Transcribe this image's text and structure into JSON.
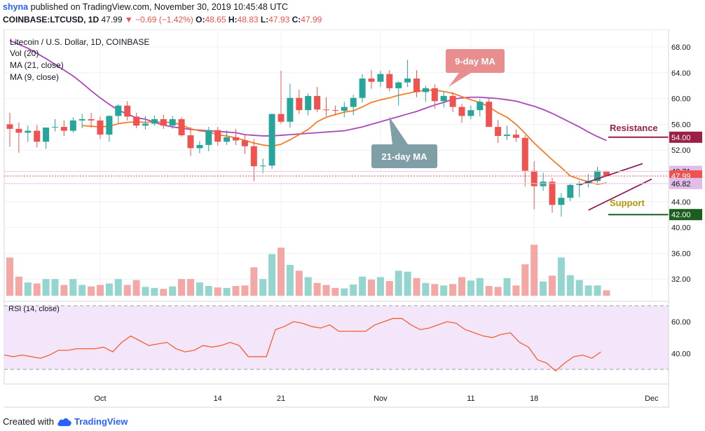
{
  "header": {
    "user": "shyna",
    "published": "published on TradingView.com, November 30, 2019 10:45:48 UTC",
    "symbol": "COINBASE:LTCUSD, 1D",
    "last": "47.99",
    "change": "−0.69 (−1.42%)",
    "o_label": "O:",
    "o": "48.65",
    "h_label": "H:",
    "h": "48.83",
    "l_label": "L:",
    "l": "47.93",
    "c_label": "C:",
    "c": "47.99"
  },
  "legend": {
    "title": "Litecoin / U.S. Dollar, 1D, COINBASE",
    "vol": "Vol (20)",
    "ma21": "MA (21, close)",
    "ma9": "MA (9, close)",
    "rsi": "RSI (14, close)"
  },
  "annotations": {
    "ma9": "9-day MA",
    "ma21": "21-day MA",
    "resistance": "Resistance",
    "support": "Support"
  },
  "footer": {
    "created_with": "Created with",
    "brand": "TradingView"
  },
  "colors": {
    "up": "#26a69a",
    "down": "#ef5350",
    "up_vol": "#94d5cf",
    "down_vol": "#f4a8a6",
    "ma9": "#f57c22",
    "ma21": "#ab47bc",
    "rsi": "#f4602d",
    "rsi_band": "#f3e5fa",
    "resistance": "#9c1f45",
    "support": "#1b5e20",
    "callout": "#7f9ea6",
    "callout_ma9": "#e88e8e"
  },
  "chart_data": {
    "type": "candlestick",
    "title": "Litecoin / U.S. Dollar, 1D, COINBASE",
    "price_ticks": [
      "68.00",
      "64.00",
      "60.00",
      "56.00",
      "52.00",
      "48.00",
      "44.00",
      "40.00",
      "36.00",
      "32.00"
    ],
    "price_labels": [
      {
        "text": "54.00",
        "value": 54.0,
        "color": "#9c1f45"
      },
      {
        "text": "48.71",
        "value": 48.71,
        "color": "#e1bee7"
      },
      {
        "text": "47.99",
        "value": 47.99,
        "color": "#ef5350"
      },
      {
        "text": "46.82",
        "value": 46.82,
        "color": "#e1bee7"
      },
      {
        "text": "42.00",
        "value": 42.0,
        "color": "#1b5e20"
      }
    ],
    "x_ticks": [
      {
        "label": "Oct",
        "day": 10
      },
      {
        "label": "14",
        "day": 23
      },
      {
        "label": "21",
        "day": 30
      },
      {
        "label": "Nov",
        "day": 41
      },
      {
        "label": "11",
        "day": 51
      },
      {
        "label": "18",
        "day": 58
      },
      {
        "label": "Dec",
        "day": 71
      }
    ],
    "rsi_ticks": [
      "60.00",
      "40.00"
    ],
    "rsi_band": [
      30,
      70
    ],
    "resistance": 54.0,
    "support": 42.0,
    "channel": {
      "upper": [
        [
          63,
          46.6
        ],
        [
          70,
          49.9
        ]
      ],
      "lower": [
        [
          64,
          42.7
        ],
        [
          71,
          47.5
        ]
      ]
    },
    "candles": [
      [
        56,
        57.8,
        52.5,
        55.3
      ],
      [
        55.3,
        56.3,
        51.6,
        54.7
      ],
      [
        54.7,
        55.8,
        53.3,
        55.0
      ],
      [
        55.0,
        55.9,
        52.4,
        53.3
      ],
      [
        53.3,
        55.5,
        52.2,
        55.5
      ],
      [
        55.5,
        56.8,
        54.9,
        55.6
      ],
      [
        55.6,
        56.6,
        54.2,
        55.0
      ],
      [
        55.0,
        57.1,
        54.7,
        56.6
      ],
      [
        56.6,
        57.6,
        55.4,
        56.8
      ],
      [
        56.8,
        57.8,
        55.5,
        56.6
      ],
      [
        56.6,
        57.2,
        53.7,
        54.4
      ],
      [
        54.4,
        57.4,
        53.3,
        57.3
      ],
      [
        57.3,
        59.1,
        56.2,
        58.9
      ],
      [
        58.9,
        59.6,
        56.6,
        57.2
      ],
      [
        57.2,
        57.8,
        55.4,
        55.8
      ],
      [
        55.8,
        57.3,
        55.2,
        56.1
      ],
      [
        56.1,
        57.4,
        55.8,
        56.8
      ],
      [
        56.8,
        57.5,
        55.3,
        55.8
      ],
      [
        55.8,
        57.3,
        55.3,
        56.8
      ],
      [
        56.8,
        57.1,
        54.1,
        54.3
      ],
      [
        54.3,
        55.6,
        51.1,
        52.3
      ],
      [
        52.3,
        53.4,
        51.5,
        52.8
      ],
      [
        52.8,
        55.6,
        51.8,
        55.1
      ],
      [
        55.1,
        55.6,
        52.7,
        53.3
      ],
      [
        53.3,
        55.1,
        52.8,
        54.0
      ],
      [
        54.0,
        55.3,
        52.8,
        53.5
      ],
      [
        53.5,
        54.5,
        51.4,
        52.6
      ],
      [
        52.6,
        53.7,
        47.2,
        49.5
      ],
      [
        49.5,
        50.7,
        48.4,
        49.6
      ],
      [
        49.6,
        57.7,
        49.1,
        57.6
      ],
      [
        57.6,
        64.3,
        56.1,
        56.4
      ],
      [
        56.4,
        62.3,
        55.5,
        60.1
      ],
      [
        60.1,
        61.4,
        57.6,
        58.2
      ],
      [
        58.2,
        60.8,
        57.4,
        60.4
      ],
      [
        60.4,
        61.8,
        57.9,
        58.3
      ],
      [
        58.3,
        60.2,
        57.3,
        58.2
      ],
      [
        58.2,
        58.9,
        57.4,
        58.1
      ],
      [
        58.1,
        59.5,
        57.1,
        58.7
      ],
      [
        58.7,
        60.6,
        57.4,
        60.1
      ],
      [
        60.1,
        63.8,
        59.4,
        63.1
      ],
      [
        63.1,
        64.4,
        61.5,
        62.6
      ],
      [
        62.6,
        64.3,
        61.8,
        63.8
      ],
      [
        63.8,
        64.4,
        61.1,
        61.6
      ],
      [
        61.6,
        62.7,
        58.9,
        62.5
      ],
      [
        62.5,
        66.0,
        61.8,
        63.1
      ],
      [
        63.1,
        64.4,
        60.2,
        61.0
      ],
      [
        61.0,
        62.0,
        59.5,
        61.6
      ],
      [
        61.6,
        62.2,
        58.4,
        59.6
      ],
      [
        59.6,
        61.1,
        58.6,
        60.4
      ],
      [
        60.4,
        61.0,
        57.9,
        58.7
      ],
      [
        58.7,
        59.2,
        56.2,
        57.3
      ],
      [
        57.3,
        58.9,
        56.8,
        58.2
      ],
      [
        58.2,
        59.9,
        57.2,
        59.5
      ],
      [
        59.5,
        60.1,
        55.7,
        55.6
      ],
      [
        55.6,
        56.7,
        53.1,
        54.2
      ],
      [
        54.2,
        55.8,
        53.6,
        54.4
      ],
      [
        54.4,
        55.2,
        53.3,
        53.9
      ],
      [
        53.9,
        54.3,
        46.4,
        48.8
      ],
      [
        48.8,
        50.3,
        42.8,
        46.4
      ],
      [
        46.4,
        48.5,
        45.7,
        47.1
      ],
      [
        47.1,
        47.7,
        42.3,
        43.5
      ],
      [
        43.5,
        45.3,
        41.7,
        44.6
      ],
      [
        44.6,
        46.8,
        44.1,
        46.6
      ],
      [
        46.6,
        47.2,
        44.7,
        46.8
      ],
      [
        46.8,
        48.3,
        46.2,
        47.2
      ],
      [
        47.2,
        49.4,
        46.9,
        48.8
      ],
      [
        48.65,
        48.83,
        47.93,
        47.99
      ]
    ],
    "candle_first_day": 0,
    "volume_max": 10,
    "volume": [
      7.8,
      3.9,
      2.7,
      2.5,
      3.4,
      3.4,
      2.2,
      3.4,
      2.2,
      1.9,
      2.2,
      2.5,
      3.4,
      2.2,
      3.2,
      1.8,
      1.6,
      1.4,
      1.9,
      3.4,
      3.4,
      2.7,
      2.0,
      1.7,
      1.6,
      2.0,
      2.1,
      5.8,
      3.4,
      8.5,
      9.8,
      6.3,
      5.1,
      3.8,
      2.6,
      2.2,
      1.6,
      1.5,
      2.3,
      3.9,
      3.3,
      3.8,
      3.0,
      5.1,
      4.9,
      3.6,
      2.6,
      2.4,
      2.1,
      2.4,
      3.8,
      3.1,
      3.6,
      2.0,
      1.8,
      3.6,
      2.1,
      6.4,
      10.4,
      2.9,
      4.1,
      7.8,
      4.2,
      3.2,
      2.1,
      2.1,
      1.1
    ],
    "volume_day_offset": 0,
    "ma9": [
      null,
      null,
      null,
      null,
      null,
      null,
      null,
      null,
      55.8,
      55.7,
      55.6,
      55.7,
      56.1,
      56.3,
      56.4,
      56.3,
      56.4,
      56.3,
      56.3,
      55.9,
      55.3,
      55.0,
      54.8,
      54.4,
      54.2,
      53.9,
      53.5,
      53.1,
      52.8,
      52.6,
      52.9,
      53.6,
      54.4,
      55.2,
      56.4,
      57.1,
      57.5,
      57.9,
      58.1,
      58.7,
      59.4,
      59.8,
      60.1,
      60.5,
      60.8,
      61.1,
      61.3,
      61.3,
      61.1,
      60.8,
      60.3,
      59.8,
      59.4,
      58.7,
      57.8,
      57.1,
      56.0,
      54.6,
      53.1,
      51.8,
      50.5,
      49.3,
      48.0,
      47.5,
      47.1,
      46.7,
      46.9
    ],
    "ma21": [
      69.0,
      68.4,
      67.8,
      67.0,
      66.2,
      65.3,
      64.4,
      63.5,
      62.4,
      61.2,
      60.1,
      59.1,
      58.2,
      57.6,
      57.0,
      56.8,
      56.3,
      55.9,
      55.6,
      55.4,
      55.2,
      55.1,
      55.0,
      54.9,
      54.8,
      54.7,
      54.4,
      54.3,
      54.2,
      54.2,
      54.3,
      54.4,
      54.5,
      54.6,
      54.7,
      54.8,
      54.9,
      55.0,
      55.3,
      55.6,
      56.0,
      56.4,
      56.8,
      57.2,
      57.6,
      58.0,
      58.5,
      59.0,
      59.4,
      59.9,
      60.1,
      60.2,
      60.2,
      60.1,
      60.0,
      59.8,
      59.6,
      59.2,
      58.8,
      58.3,
      57.7,
      57.0,
      56.3,
      55.6,
      54.8,
      54.1,
      53.5
    ],
    "rsi": [
      39,
      38,
      39,
      38,
      37,
      39,
      42,
      42,
      43,
      43,
      43,
      44,
      41,
      47,
      51,
      48,
      45,
      46,
      47,
      43,
      41,
      42,
      45,
      44,
      45,
      47,
      45,
      38,
      38,
      38,
      55,
      57,
      60,
      59,
      57,
      56,
      58,
      54,
      54,
      54,
      54,
      58,
      60,
      62,
      62,
      58,
      55,
      56,
      58,
      60,
      59,
      55,
      53,
      51,
      50,
      52,
      53,
      47,
      44,
      36,
      34,
      29,
      34,
      38,
      39,
      37,
      41
    ]
  }
}
